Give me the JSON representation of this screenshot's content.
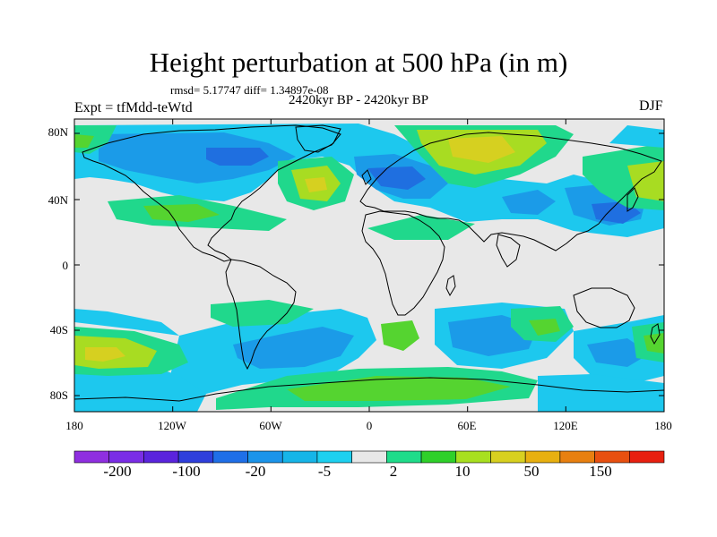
{
  "title": "Height perturbation at 500 hPa (in m)",
  "stats": "rmsd= 5.17747 diff= 1.34897e-08",
  "subtitle": "2420kyr BP - 2420kyr BP",
  "experiment": "Expt = tfMdd-teWtd",
  "season": "DJF",
  "lat_labels": [
    "80N",
    "40N",
    "0",
    "40S",
    "80S"
  ],
  "lon_labels": [
    "180",
    "120W",
    "60W",
    "0",
    "60E",
    "120E",
    "180"
  ],
  "colorbar": {
    "colors": [
      "#8f2fe0",
      "#7a2de6",
      "#5a24dd",
      "#2f3fdc",
      "#1f6fe8",
      "#1b94ea",
      "#16b5e8",
      "#1dd0f0",
      "#e8e8e8",
      "#1fdc8a",
      "#2fd02a",
      "#a8e020",
      "#d8d020",
      "#e8b010",
      "#e88010",
      "#e85010",
      "#e82010"
    ],
    "labels": [
      "-200",
      "-100",
      "-20",
      "-5",
      "2",
      "10",
      "50",
      "150"
    ]
  },
  "palette": {
    "ocean": "#e8e8e8",
    "neg1": "#1dc8ee",
    "neg2": "#1b9be8",
    "neg3": "#1f6fe0",
    "pos1": "#20d88c",
    "pos2": "#55d430",
    "pos3": "#a8dc22",
    "pos4": "#d6d020",
    "coast": "#000000"
  }
}
